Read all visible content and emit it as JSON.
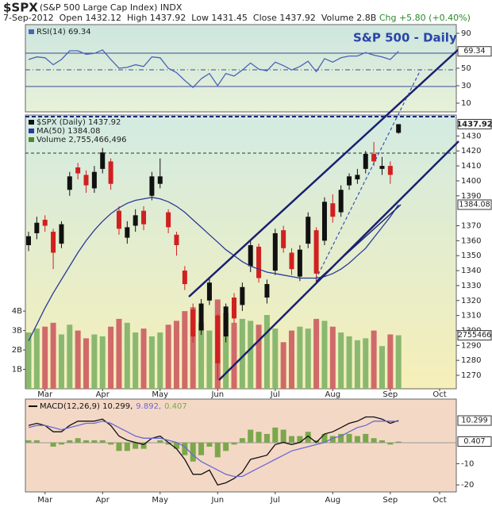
{
  "header": {
    "symbol": "$SPX",
    "name": "(S&P 500 Large Cap Index) INDX",
    "quote": "7-Sep-2012  Open 1432.12  High 1437.92  Low 1431.45  Close 1437.92  Volume 2.8B ",
    "change": "Chg +5.80 (+0.40%)"
  },
  "chart_data": [
    {
      "type": "line",
      "title": "S&P 500 - Daily",
      "categories": [
        null,
        null,
        "Mar",
        null,
        null,
        null,
        null,
        null,
        null,
        "Apr",
        null,
        null,
        null,
        null,
        null,
        null,
        "May",
        null,
        null,
        null,
        null,
        null,
        null,
        "Jun",
        null,
        null,
        null,
        null,
        null,
        null,
        "Jul",
        null,
        null,
        null,
        null,
        null,
        null,
        "Aug",
        null,
        null,
        null,
        null,
        null,
        null,
        "Sep",
        null,
        null,
        null,
        null,
        null,
        "Oct",
        null,
        null
      ],
      "series": [
        {
          "name": "RSI(14) 69.34",
          "color": "#4a64b8",
          "last_value_label": "69.34",
          "values": [
            60,
            63,
            62,
            54,
            60,
            70,
            70,
            66,
            67,
            71,
            60,
            50,
            51,
            54,
            52,
            63,
            62,
            50,
            45,
            36,
            28,
            38,
            44,
            30,
            44,
            41,
            48,
            56,
            49,
            47,
            57,
            53,
            48,
            52,
            58,
            46,
            61,
            57,
            62,
            64,
            64,
            68,
            65,
            63,
            60,
            69.34,
            null,
            null,
            null,
            null,
            null,
            null,
            null
          ]
        }
      ],
      "ylim": [
        0,
        100
      ],
      "yticks": [
        10,
        30,
        50,
        90
      ]
    },
    {
      "type": "candlestick",
      "categories": [
        null,
        null,
        "Mar",
        null,
        null,
        null,
        null,
        null,
        null,
        "Apr",
        null,
        null,
        null,
        null,
        null,
        null,
        "May",
        null,
        null,
        null,
        null,
        null,
        null,
        "Jun",
        null,
        null,
        null,
        null,
        null,
        null,
        "Jul",
        null,
        null,
        null,
        null,
        null,
        null,
        "Aug",
        null,
        null,
        null,
        null,
        null,
        null,
        "Sep",
        null,
        null,
        null,
        null,
        null,
        "Oct",
        null,
        null
      ],
      "series": [
        {
          "name": "$SPX (Daily) 1437.92",
          "up_color": "#111111",
          "down_color": "#d02020",
          "last_value_label": "1437.92",
          "open": [
            1357,
            1365,
            1374,
            1366,
            1358,
            1394,
            1409,
            1404,
            1395,
            1408,
            1413,
            1380,
            1362,
            1370,
            1380,
            1390,
            1398,
            1379,
            1364,
            1340,
            1314,
            1300,
            1320,
            1310,
            1296,
            1322,
            1317,
            1343,
            1356,
            1322,
            1340,
            1367,
            1352,
            1336,
            1358,
            1367,
            1360,
            1385,
            1379,
            1397,
            1401,
            1408,
            1418,
            1408,
            1410,
            1432.12,
            null,
            null,
            null,
            null,
            null,
            null,
            null
          ],
          "high": [
            1366,
            1376,
            1377,
            1368,
            1373,
            1406,
            1412,
            1407,
            1410,
            1422,
            1415,
            1383,
            1373,
            1381,
            1383,
            1406,
            1415,
            1381,
            1366,
            1343,
            1318,
            1321,
            1335,
            1311,
            1318,
            1325,
            1332,
            1361,
            1358,
            1334,
            1368,
            1370,
            1355,
            1357,
            1379,
            1369,
            1389,
            1391,
            1397,
            1405,
            1408,
            1420,
            1426,
            1416,
            1413,
            1437.92,
            null,
            null,
            null,
            null,
            null,
            null,
            null
          ],
          "low": [
            1353,
            1361,
            1366,
            1341,
            1355,
            1390,
            1401,
            1392,
            1392,
            1405,
            1394,
            1364,
            1358,
            1366,
            1367,
            1387,
            1395,
            1365,
            1350,
            1327,
            1292,
            1297,
            1317,
            1267,
            1292,
            1305,
            1313,
            1339,
            1332,
            1318,
            1337,
            1352,
            1337,
            1333,
            1355,
            1331,
            1357,
            1372,
            1376,
            1394,
            1398,
            1405,
            1410,
            1404,
            1398,
            1431.45,
            null,
            null,
            null,
            null,
            null,
            null,
            null
          ],
          "close": [
            1363,
            1372,
            1370,
            1352,
            1371,
            1403,
            1405,
            1397,
            1406,
            1419,
            1398,
            1368,
            1369,
            1377,
            1371,
            1403,
            1403,
            1369,
            1357,
            1331,
            1296,
            1318,
            1332,
            1278,
            1316,
            1308,
            1329,
            1357,
            1335,
            1331,
            1365,
            1355,
            1341,
            1354,
            1376,
            1338,
            1386,
            1376,
            1394,
            1403,
            1404,
            1418,
            1413,
            1410,
            1404,
            1437.92,
            null,
            null,
            null,
            null,
            null,
            null,
            null
          ]
        },
        {
          "name": "MA(50) 1384.08",
          "type": "line",
          "color": "#2a3a9a",
          "last_value_label": "1384.08",
          "values": [
            1293,
            1304,
            1315,
            1325,
            1334,
            1343,
            1352,
            1360,
            1367,
            1373,
            1378,
            1382,
            1385,
            1387,
            1388,
            1389,
            1388,
            1386,
            1383,
            1379,
            1374,
            1369,
            1364,
            1359,
            1354,
            1350,
            1346,
            1343,
            1341,
            1339,
            1338,
            1337,
            1336,
            1335,
            1335,
            1335,
            1336,
            1338,
            1341,
            1345,
            1350,
            1355,
            1362,
            1369,
            1376,
            1384.08,
            null,
            null,
            null,
            null,
            null,
            null,
            null
          ]
        },
        {
          "name": "Volume 2,755,466,496",
          "type": "bar",
          "axis": "y2",
          "color": "#4a8a2a",
          "up_color": "#8ab870",
          "down_color": "#d06a6a",
          "last_value_label": "2755466",
          "values": [
            2900000000.0,
            3100000000.0,
            3200000000.0,
            3400000000.0,
            2800000000.0,
            3300000000.0,
            3000000000.0,
            2600000000.0,
            2800000000.0,
            2700000000.0,
            3200000000.0,
            3600000000.0,
            3400000000.0,
            2900000000.0,
            3100000000.0,
            2700000000.0,
            2900000000.0,
            3300000000.0,
            3500000000.0,
            4000000000.0,
            4200000000.0,
            3400000000.0,
            3000000000.0,
            4600000000.0,
            3900000000.0,
            3400000000.0,
            3600000000.0,
            3500000000.0,
            3300000000.0,
            3800000000.0,
            3100000000.0,
            2400000000.0,
            3000000000.0,
            3200000000.0,
            3100000000.0,
            3600000000.0,
            3500000000.0,
            3200000000.0,
            2900000000.0,
            2700000000.0,
            2500000000.0,
            2600000000.0,
            3000000000.0,
            2200000000.0,
            2800000000.0,
            2755466496,
            null,
            null,
            null,
            null,
            null,
            null,
            null
          ]
        }
      ],
      "ylim": [
        1261,
        1444
      ],
      "yticks": [
        1270,
        1280,
        1290,
        1300,
        1310,
        1320,
        1330,
        1340,
        1350,
        1360,
        1370,
        1390,
        1400,
        1410,
        1420,
        1430
      ],
      "y2lim": [
        0,
        14100000000
      ],
      "y2ticks": [
        {
          "value": 1000000000,
          "label": "1B"
        },
        {
          "value": 2000000000,
          "label": "2B"
        },
        {
          "value": 3000000000,
          "label": "3B"
        },
        {
          "value": 4000000000,
          "label": "4B"
        }
      ]
    },
    {
      "type": "line",
      "categories": [
        null,
        null,
        "Mar",
        null,
        null,
        null,
        null,
        null,
        null,
        "Apr",
        null,
        null,
        null,
        null,
        null,
        null,
        "May",
        null,
        null,
        null,
        null,
        null,
        null,
        "Jun",
        null,
        null,
        null,
        null,
        null,
        null,
        "Jul",
        null,
        null,
        null,
        null,
        null,
        null,
        "Aug",
        null,
        null,
        null,
        null,
        null,
        null,
        "Sep",
        null,
        null,
        null,
        null,
        null,
        "Oct",
        null,
        null
      ],
      "series": [
        {
          "name": "MACD(12,26,9) 10.299,",
          "color": "#111111",
          "last_value_label": "10.299",
          "values": [
            8,
            9,
            8,
            5,
            5,
            8,
            10,
            10,
            10,
            11,
            8,
            3,
            1,
            0,
            -1,
            2,
            3,
            0,
            -3,
            -8,
            -15,
            -15,
            -13,
            -20,
            -19,
            -17,
            -14,
            -8,
            -7,
            -6,
            -1,
            0,
            -1,
            0,
            3,
            0,
            4,
            5,
            7,
            9,
            10,
            12,
            12,
            11,
            9,
            10.299,
            null,
            null,
            null,
            null,
            null,
            null,
            null
          ]
        },
        {
          "name": "9.892,",
          "color": "#6a6ad0",
          "values": [
            7,
            8,
            8,
            7,
            6,
            7,
            8,
            9,
            9,
            10,
            9,
            7,
            5,
            3,
            2,
            2,
            2,
            1,
            0,
            -2,
            -6,
            -9,
            -11,
            -13,
            -15,
            -16,
            -16,
            -14,
            -12,
            -10,
            -8,
            -6,
            -4,
            -3,
            -2,
            -1,
            0,
            2,
            3,
            5,
            7,
            8,
            10,
            10,
            10,
            9.892,
            null,
            null,
            null,
            null,
            null,
            null,
            null
          ]
        },
        {
          "name": "0.407",
          "type": "bar",
          "color": "#7aa84a",
          "last_value_label": "0.407",
          "values": [
            1,
            1,
            0,
            -2,
            -1,
            1,
            2,
            1,
            1,
            1,
            -1,
            -4,
            -4,
            -3,
            -3,
            0,
            1,
            -1,
            -3,
            -6,
            -9,
            -6,
            -2,
            -7,
            -4,
            -1,
            2,
            6,
            5,
            4,
            7,
            6,
            3,
            3,
            5,
            1,
            4,
            3,
            4,
            4,
            3,
            4,
            2,
            1,
            -1,
            0.407,
            null,
            null,
            null,
            null,
            null,
            null,
            null
          ]
        }
      ],
      "ylim": [
        -23.3,
        20.4
      ],
      "yticks": [
        -20,
        -10
      ]
    }
  ]
}
